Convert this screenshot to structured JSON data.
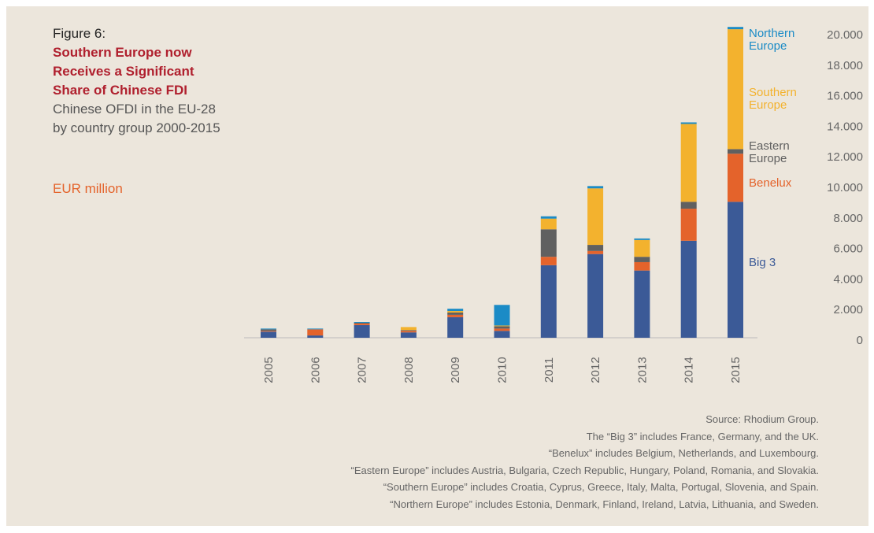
{
  "chart_data": {
    "type": "stacked_bar",
    "figure_label": "Figure 6:",
    "title": "Southern Europe now Receives a Significant Share of Chinese FDI",
    "subtitle": "Chinese OFDI in the EU-28 by country group 2000-2015",
    "unit_label": "EUR million",
    "categories": [
      "2005",
      "2006",
      "2007",
      "2008",
      "2009",
      "2010",
      "2011",
      "2012",
      "2013",
      "2014",
      "2015"
    ],
    "series": [
      {
        "name": "Big 3",
        "color": "#3b5a97",
        "values": [
          400,
          150,
          830,
          350,
          1350,
          450,
          4750,
          5480,
          4400,
          6350,
          8900
        ]
      },
      {
        "name": "Benelux",
        "color": "#e4632b",
        "values": [
          50,
          400,
          100,
          100,
          150,
          150,
          550,
          200,
          550,
          2100,
          3150
        ]
      },
      {
        "name": "Eastern Europe",
        "color": "#606060",
        "values": [
          100,
          0,
          50,
          50,
          150,
          150,
          1800,
          400,
          350,
          450,
          300
        ]
      },
      {
        "name": "Southern Europe",
        "color": "#f3b22e",
        "values": [
          0,
          0,
          0,
          200,
          100,
          50,
          700,
          3700,
          1100,
          5100,
          7850
        ]
      },
      {
        "name": "Northern Europe",
        "color": "#1b8bc6",
        "values": [
          50,
          50,
          50,
          0,
          150,
          1350,
          150,
          150,
          100,
          100,
          150
        ]
      }
    ],
    "ylim": [
      0,
      20000
    ],
    "yticks": [
      0,
      {
        "value": 2000,
        "label": "2.000"
      },
      {
        "value": 4000,
        "label": "4.000"
      },
      {
        "value": 6000,
        "label": "6.000"
      },
      {
        "value": 8000,
        "label": "8.000"
      },
      {
        "value": 10000,
        "label": "10.000"
      },
      {
        "value": 12000,
        "label": "12.000"
      },
      {
        "value": 14000,
        "label": "14.000"
      },
      {
        "value": 16000,
        "label": "16.000"
      },
      {
        "value": 18000,
        "label": "18.000"
      },
      {
        "value": 20000,
        "label": "20.000"
      }
    ],
    "notes": [
      "Source: Rhodium Group.",
      "The “Big 3” includes France, Germany, and the UK.",
      "“Benelux” includes Belgium, Netherlands, and Luxembourg.",
      "“Eastern Europe” includes Austria, Bulgaria, Czech Republic, Hungary, Poland, Romania, and Slovakia.",
      "“Southern Europe” includes Croatia, Cyprus, Greece, Italy, Malta, Portugal, Slovenia, and Spain.",
      "“Northern Europe” includes Estonia, Denmark, Finland, Ireland, Latvia, Lithuania, and Sweden."
    ]
  }
}
